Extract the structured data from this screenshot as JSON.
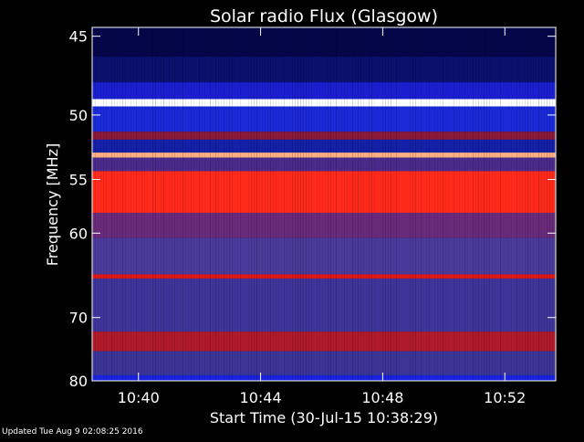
{
  "chart_data": {
    "type": "heatmap",
    "title": "Solar radio Flux (Glasgow)",
    "xlabel": "Start Time (30-Jul-15 10:38:29)",
    "ylabel": "Frequency [MHz]",
    "x_range_minutes": [
      "10:38:29",
      "10:53:40"
    ],
    "x_ticks": [
      "10:40",
      "10:44",
      "10:48",
      "10:52"
    ],
    "y_ticks": [
      45,
      50,
      55,
      60,
      70,
      80
    ],
    "ylim": [
      44.5,
      80
    ],
    "y_scale": "reciprocal",
    "grid": false,
    "colormap": [
      "#05064a",
      "#1a1fd0",
      "#3a35c8",
      "#5a3a9a",
      "#7d2a5a",
      "#c41515",
      "#ff2a1a",
      "#ff9a60",
      "#ffffff"
    ],
    "bands": [
      {
        "from": 44.5,
        "to": 46.2,
        "color": "#05064a"
      },
      {
        "from": 46.2,
        "to": 47.8,
        "color": "#0b0f6e"
      },
      {
        "from": 47.8,
        "to": 48.9,
        "color": "#1a1fd0"
      },
      {
        "from": 48.9,
        "to": 49.4,
        "color": "#ffffff"
      },
      {
        "from": 49.4,
        "to": 51.2,
        "color": "#1a2ad8"
      },
      {
        "from": 51.2,
        "to": 51.8,
        "color": "#8a1a3a"
      },
      {
        "from": 51.8,
        "to": 52.8,
        "color": "#1420a8"
      },
      {
        "from": 52.8,
        "to": 53.2,
        "color": "#ffb080"
      },
      {
        "from": 53.2,
        "to": 54.3,
        "color": "#4a2a8a"
      },
      {
        "from": 54.3,
        "to": 58.0,
        "color": "#ff2a1a"
      },
      {
        "from": 58.0,
        "to": 60.5,
        "color": "#6a2a7a"
      },
      {
        "from": 60.5,
        "to": 64.5,
        "color": "#4a3a9a"
      },
      {
        "from": 64.5,
        "to": 65.0,
        "color": "#e01818"
      },
      {
        "from": 65.0,
        "to": 72.0,
        "color": "#3d3599"
      },
      {
        "from": 72.0,
        "to": 75.0,
        "color": "#b01a2a"
      },
      {
        "from": 75.0,
        "to": 79.0,
        "color": "#3b3598"
      },
      {
        "from": 79.0,
        "to": 80.0,
        "color": "#1a24e0"
      }
    ],
    "footer": "Updated Tue Aug  9 02:08:25 2016"
  }
}
